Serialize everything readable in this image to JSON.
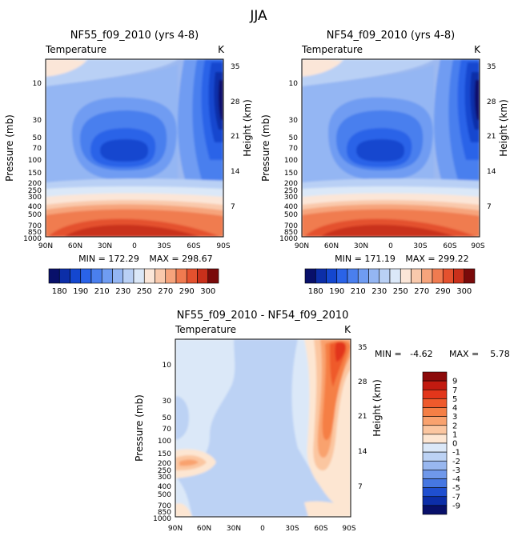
{
  "page_title": "JJA",
  "chart_data": [
    {
      "id": "panel-nf55",
      "type": "contour",
      "title": "NF55_f09_2010 (yrs 4-8)",
      "variable": "Temperature",
      "units": "K",
      "xlabel": "",
      "ylabel_left": "Pressure (mb)",
      "ylabel_right": "Height (km)",
      "x_ticks": [
        "90N",
        "60N",
        "30N",
        "0",
        "30S",
        "60S",
        "90S"
      ],
      "y_ticks_pressure": [
        "10",
        "30",
        "50",
        "70",
        "100",
        "150",
        "200",
        "250",
        "300",
        "400",
        "500",
        "700",
        "850",
        "1000"
      ],
      "y_ticks_height": [
        "35",
        "28",
        "21",
        "14",
        "7"
      ],
      "min_label": "MIN = 172.29",
      "max_label": "MAX = 298.67",
      "min": 172.29,
      "max": 298.67,
      "colorbar_labels": [
        "180",
        "190",
        "210",
        "230",
        "250",
        "270",
        "290",
        "300"
      ],
      "colorbar_colors": [
        "#08106a",
        "#0c2ea8",
        "#1447cf",
        "#2a63e8",
        "#4a7fee",
        "#6f9cf2",
        "#94b6f3",
        "#b9d0f5",
        "#dbe8f8",
        "#fbe6d8",
        "#f9c9ac",
        "#f6a47c",
        "#f07b50",
        "#e4512e",
        "#c9301b",
        "#7a0a0a"
      ]
    },
    {
      "id": "panel-nf54",
      "type": "contour",
      "title": "NF54_f09_2010 (yrs 4-8)",
      "variable": "Temperature",
      "units": "K",
      "xlabel": "",
      "ylabel_left": "Pressure (mb)",
      "ylabel_right": "Height (km)",
      "x_ticks": [
        "90N",
        "60N",
        "30N",
        "0",
        "30S",
        "60S",
        "90S"
      ],
      "y_ticks_pressure": [
        "10",
        "30",
        "50",
        "70",
        "100",
        "150",
        "200",
        "250",
        "300",
        "400",
        "500",
        "700",
        "850",
        "1000"
      ],
      "y_ticks_height": [
        "35",
        "28",
        "21",
        "14",
        "7"
      ],
      "min_label": "MIN = 171.19",
      "max_label": "MAX = 299.22",
      "min": 171.19,
      "max": 299.22,
      "colorbar_labels": [
        "180",
        "190",
        "210",
        "230",
        "250",
        "270",
        "290",
        "300"
      ],
      "colorbar_colors": [
        "#08106a",
        "#0c2ea8",
        "#1447cf",
        "#2a63e8",
        "#4a7fee",
        "#6f9cf2",
        "#94b6f3",
        "#b9d0f5",
        "#dbe8f8",
        "#fbe6d8",
        "#f9c9ac",
        "#f6a47c",
        "#f07b50",
        "#e4512e",
        "#c9301b",
        "#7a0a0a"
      ]
    },
    {
      "id": "panel-diff",
      "type": "contour",
      "title": "NF55_f09_2010 - NF54_f09_2010",
      "variable": "Temperature",
      "units": "K",
      "xlabel": "",
      "ylabel_left": "Pressure (mb)",
      "ylabel_right": "Height (km)",
      "x_ticks": [
        "90N",
        "60N",
        "30N",
        "0",
        "30S",
        "60S",
        "90S"
      ],
      "y_ticks_pressure": [
        "10",
        "30",
        "50",
        "70",
        "100",
        "150",
        "200",
        "250",
        "300",
        "400",
        "500",
        "700",
        "850",
        "1000"
      ],
      "y_ticks_height": [
        "35",
        "28",
        "21",
        "14",
        "7"
      ],
      "min_label": "MIN =   -4.62",
      "max_label": "MAX =    5.78",
      "min": -4.62,
      "max": 5.78,
      "colorbar_labels": [
        "9",
        "7",
        "5",
        "4",
        "3",
        "2",
        "1",
        "0",
        "-1",
        "-2",
        "-3",
        "-4",
        "-5",
        "-7",
        "-9"
      ],
      "colorbar_colors": [
        "#8c0a0a",
        "#c21a10",
        "#e2361b",
        "#ef5a2c",
        "#f57f45",
        "#f9a26e",
        "#fbc6a0",
        "#fde6d2",
        "#dbe8f8",
        "#bcd2f4",
        "#98b7ef",
        "#6f98ea",
        "#4677e2",
        "#1f4fd0",
        "#0c2ea8",
        "#08106a"
      ]
    }
  ]
}
